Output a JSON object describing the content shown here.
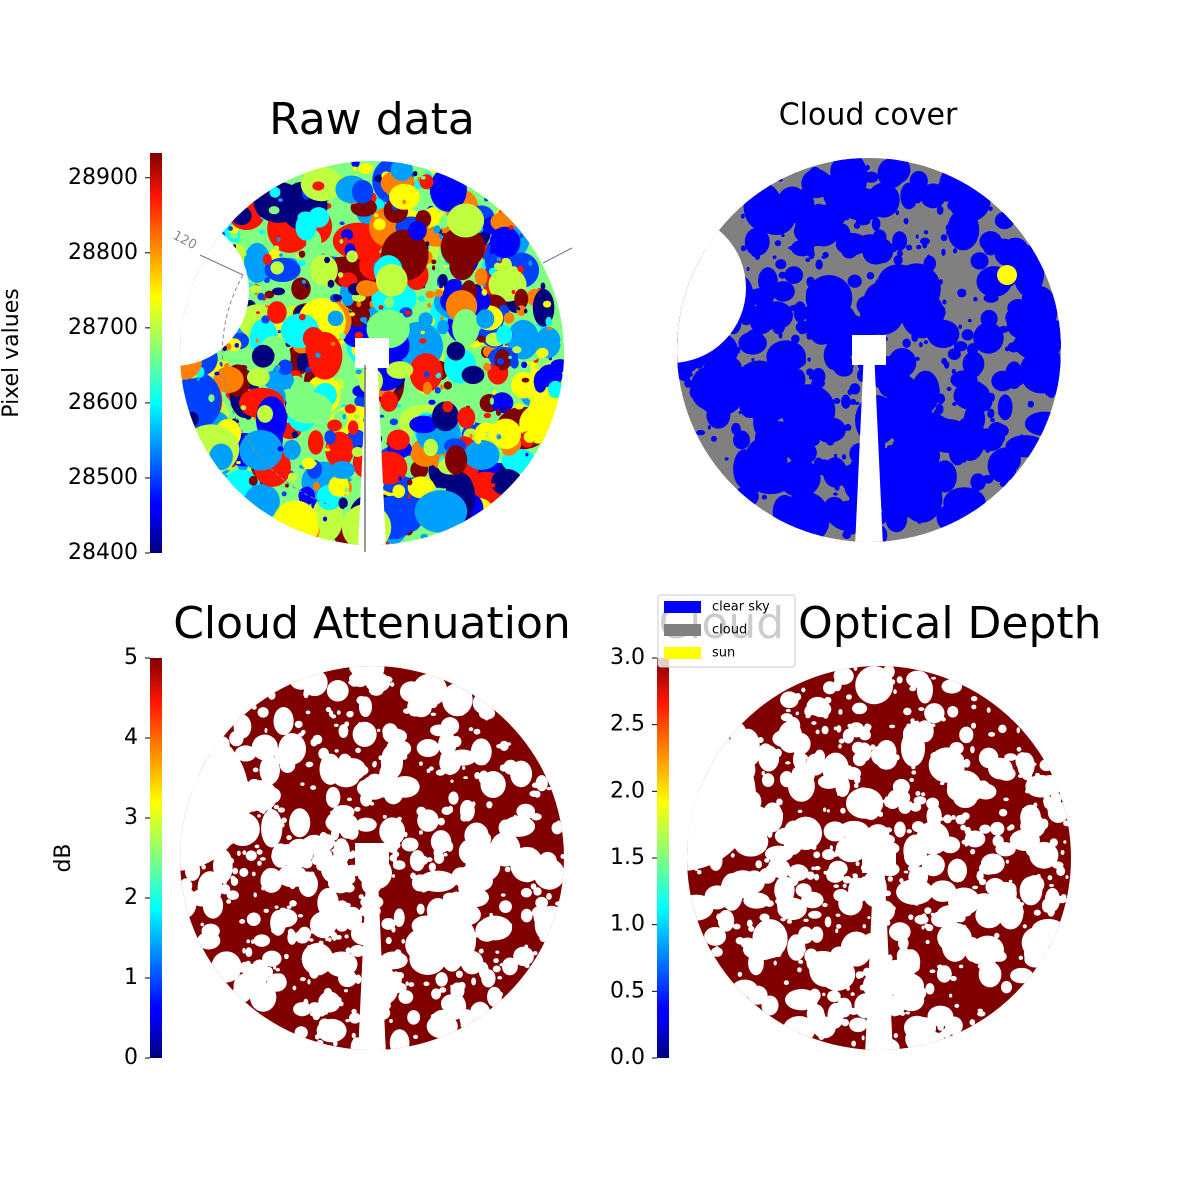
{
  "chart_data": [
    {
      "type": "image",
      "title": "Raw data",
      "colormap": "jet",
      "colorbar": {
        "label": "Pixel values",
        "lim": [
          28400,
          28933
        ],
        "ticks": [
          28400,
          28500,
          28600,
          28700,
          28800,
          28900
        ]
      },
      "annotations": [
        "120"
      ]
    },
    {
      "type": "image",
      "title": "Cloud cover",
      "series": [
        {
          "name": "clear sky",
          "color": "#0000ff"
        },
        {
          "name": "cloud",
          "color": "#808080"
        },
        {
          "name": "sun",
          "color": "#ffff00"
        }
      ]
    },
    {
      "type": "image",
      "title": "Cloud Attenuation",
      "colormap": "jet",
      "colorbar": {
        "label": "dB",
        "lim": [
          0,
          5
        ],
        "ticks": [
          0,
          1,
          2,
          3,
          4,
          5
        ]
      }
    },
    {
      "type": "image",
      "title": "Cloud Optical Depth",
      "colormap": "jet",
      "colorbar": {
        "label": "",
        "lim": [
          0,
          3
        ],
        "ticks": [
          {
            "value": 0,
            "label": "0.0"
          },
          {
            "value": 0.5,
            "label": "0.5"
          },
          {
            "value": 1,
            "label": "1.0"
          },
          {
            "value": 1.5,
            "label": "1.5"
          },
          {
            "value": 2,
            "label": "2.0"
          },
          {
            "value": 2.5,
            "label": "2.5"
          },
          {
            "value": 3,
            "label": "3.0"
          }
        ]
      }
    }
  ]
}
